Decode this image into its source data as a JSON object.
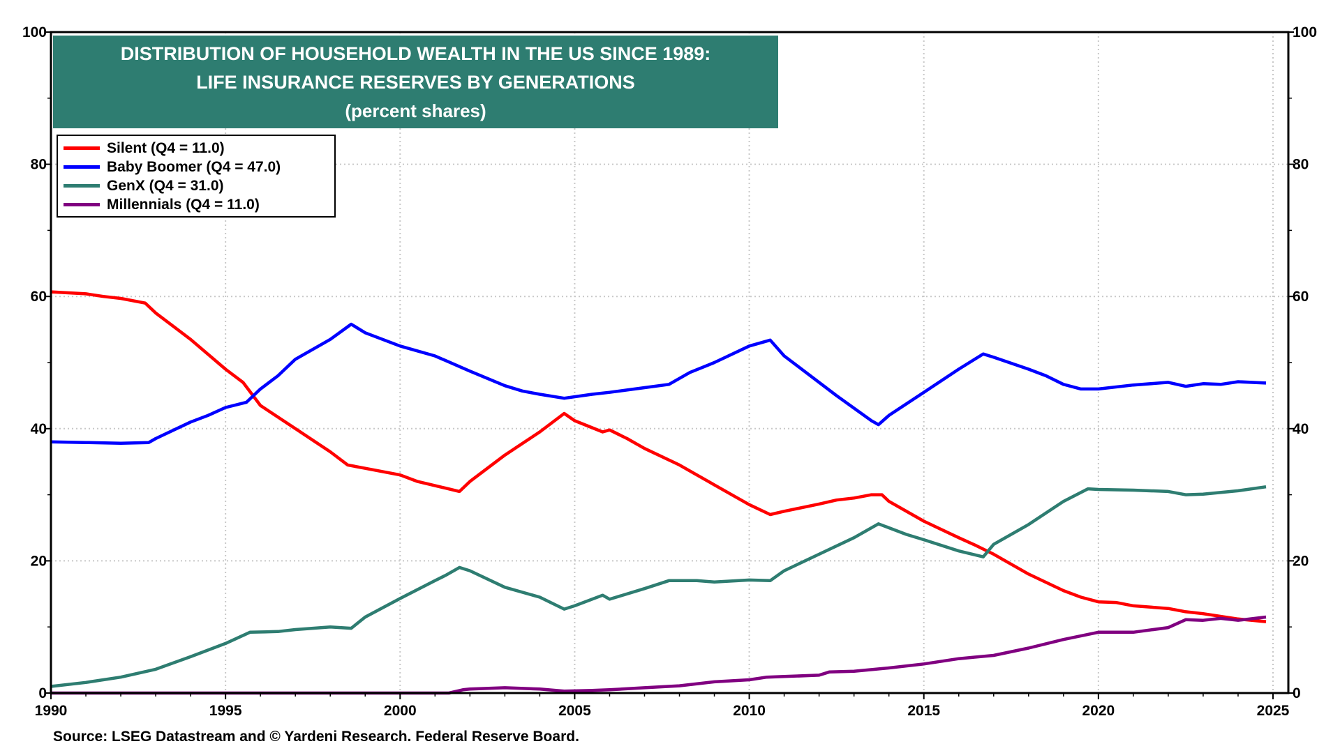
{
  "chart_data": {
    "type": "line",
    "title": "DISTRIBUTION OF HOUSEHOLD WEALTH IN THE US SINCE 1989:",
    "subtitle": "LIFE INSURANCE RESERVES BY GENERATIONS",
    "units_note": "(percent shares)",
    "source": "Source: LSEG Datastream and © Yardeni Research. Federal Reserve Board.",
    "xlim": [
      1990,
      2025.5
    ],
    "ylim": [
      0,
      100
    ],
    "x_ticks": [
      "1990",
      "1995",
      "2000",
      "2005",
      "2010",
      "2015",
      "2020",
      "2025"
    ],
    "y_ticks": [
      "0",
      "20",
      "40",
      "60",
      "80",
      "100"
    ],
    "grid": true,
    "legend_placement": "top-left",
    "series": [
      {
        "name": "Silent (Q4 = 11.0)",
        "color": "#ff0000",
        "x": [
          1990,
          1991,
          1991.5,
          1992,
          1992.7,
          1993,
          1994,
          1995,
          1995.5,
          1996,
          1997,
          1998,
          1998.5,
          1999,
          2000,
          2000.5,
          2001.3,
          2001.7,
          2002,
          2003,
          2004,
          2004.7,
          2005,
          2005.8,
          2006,
          2006.5,
          2007,
          2008,
          2008.5,
          2009,
          2010,
          2010.6,
          2011,
          2012,
          2012.5,
          2013,
          2013.5,
          2013.8,
          2014,
          2015,
          2016,
          2016.5,
          2017,
          2018,
          2019,
          2019.5,
          2020,
          2020.5,
          2021,
          2022,
          2022.5,
          2023,
          2024,
          2024.8
        ],
        "y": [
          60.7,
          60.4,
          60,
          59.7,
          59,
          57.5,
          53.5,
          49,
          47,
          43.5,
          40,
          36.5,
          34.5,
          34,
          33,
          32,
          31,
          30.5,
          32,
          36,
          39.5,
          42.3,
          41.2,
          39.5,
          39.8,
          38.5,
          37,
          34.5,
          33,
          31.5,
          28.5,
          27,
          27.5,
          28.6,
          29.2,
          29.5,
          30,
          30,
          29,
          26,
          23.5,
          22.3,
          21,
          18,
          15.5,
          14.5,
          13.8,
          13.7,
          13.2,
          12.8,
          12.3,
          12,
          11.2,
          10.8
        ]
      },
      {
        "name": "Baby Boomer (Q4 = 47.0)",
        "color": "#0000ff",
        "x": [
          1990,
          1991,
          1992,
          1992.8,
          1993,
          1994,
          1994.5,
          1995,
          1995.6,
          1996,
          1996.5,
          1997,
          1998,
          1998.6,
          1999,
          2000,
          2001,
          2002,
          2003,
          2003.5,
          2004,
          2004.7,
          2005.5,
          2006,
          2007,
          2007.7,
          2008.3,
          2009,
          2010,
          2010.6,
          2011,
          2012,
          2012.5,
          2013.5,
          2013.7,
          2014,
          2015,
          2016,
          2016.7,
          2017,
          2018,
          2018.5,
          2019,
          2019.5,
          2020,
          2021,
          2022,
          2022.5,
          2023,
          2023.5,
          2024,
          2024.8
        ],
        "y": [
          38,
          37.9,
          37.8,
          37.9,
          38.5,
          41,
          42,
          43.2,
          44,
          46,
          48,
          50.5,
          53.5,
          55.8,
          54.5,
          52.5,
          51,
          48.7,
          46.5,
          45.7,
          45.2,
          44.6,
          45.2,
          45.5,
          46.2,
          46.7,
          48.5,
          50,
          52.5,
          53.4,
          51,
          47,
          45,
          41.2,
          40.6,
          42,
          45.5,
          49,
          51.3,
          50.8,
          49,
          48,
          46.7,
          46,
          46,
          46.6,
          47,
          46.4,
          46.8,
          46.7,
          47.1,
          46.9
        ]
      },
      {
        "name": "GenX (Q4 = 31.0)",
        "color": "#2e7d71",
        "x": [
          1990,
          1991,
          1992,
          1993,
          1994,
          1995,
          1995.7,
          1996.5,
          1997,
          1998,
          1998.6,
          1999,
          2000,
          2001,
          2001.3,
          2001.7,
          2002,
          2003,
          2004,
          2004.7,
          2005,
          2005.8,
          2006,
          2007,
          2007.7,
          2008.5,
          2009,
          2010,
          2010.6,
          2011,
          2012,
          2013,
          2013.7,
          2014,
          2014.5,
          2015,
          2016,
          2016.7,
          2017,
          2018,
          2019,
          2019.7,
          2020,
          2021,
          2022,
          2022.5,
          2023,
          2024,
          2024.8
        ],
        "y": [
          1,
          1.6,
          2.4,
          3.6,
          5.5,
          7.5,
          9.2,
          9.3,
          9.6,
          10,
          9.8,
          11.5,
          14.3,
          17,
          17.8,
          19,
          18.5,
          16,
          14.5,
          12.7,
          13.2,
          14.8,
          14.2,
          15.8,
          17,
          17,
          16.8,
          17.1,
          17,
          18.5,
          21,
          23.5,
          25.6,
          25,
          24,
          23.2,
          21.5,
          20.6,
          22.5,
          25.5,
          29,
          30.9,
          30.8,
          30.7,
          30.5,
          30,
          30.1,
          30.6,
          31.2
        ]
      },
      {
        "name": "Millennials (Q4 = 11.0)",
        "color": "#800080",
        "x": [
          1990,
          2001.4,
          2001.8,
          2002,
          2003,
          2004,
          2004.7,
          2005.5,
          2006,
          2007,
          2008,
          2009,
          2010,
          2010.5,
          2011,
          2012,
          2012.3,
          2013,
          2014,
          2015,
          2016,
          2017,
          2018,
          2019,
          2020,
          2021,
          2022,
          2022.5,
          2023,
          2023.5,
          2024,
          2024.8
        ],
        "y": [
          0,
          0,
          0.5,
          0.6,
          0.8,
          0.6,
          0.3,
          0.4,
          0.5,
          0.8,
          1.1,
          1.7,
          2,
          2.4,
          2.5,
          2.7,
          3.2,
          3.3,
          3.8,
          4.4,
          5.2,
          5.7,
          6.8,
          8.1,
          9.2,
          9.2,
          9.9,
          11.1,
          11,
          11.3,
          11,
          11.5
        ]
      }
    ]
  }
}
